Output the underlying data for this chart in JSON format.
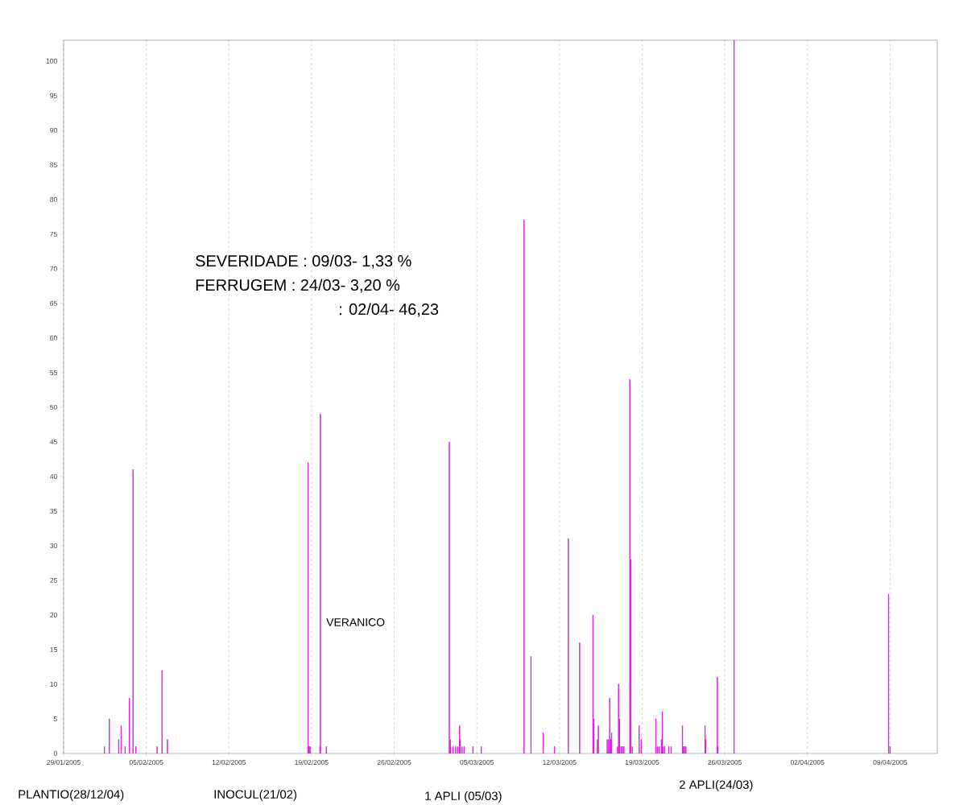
{
  "chart_data": {
    "type": "bar",
    "color": "#e000e0",
    "x": [
      "2005-02-01T11:00",
      "2005-02-01T21:00",
      "2005-02-02T16:00",
      "2005-02-02T21:00",
      "2005-02-03T05:00",
      "2005-02-03T14:00",
      "2005-02-03T21:00",
      "2005-02-04T03:00",
      "2005-02-05T22:00",
      "2005-02-06T08:00",
      "2005-02-06T19:00",
      "2005-02-18T17:00",
      "2005-02-18T19:00",
      "2005-02-18T21:00",
      "2005-02-19T17:00",
      "2005-02-19T18:00",
      "2005-02-20T06:00",
      "2005-03-02T16:00",
      "2005-03-02T18:00",
      "2005-03-02T19:00",
      "2005-03-03T00:00",
      "2005-03-03T05:00",
      "2005-03-03T09:00",
      "2005-03-03T13:00",
      "2005-03-03T14:00",
      "2005-03-03T18:00",
      "2005-03-03T22:00",
      "2005-03-04T16:00",
      "2005-03-05T09:00",
      "2005-03-09T00:00",
      "2005-03-09T14:00",
      "2005-03-10T15:00",
      "2005-03-11T14:00",
      "2005-03-12T18:00",
      "2005-03-13T17:00",
      "2005-03-14T20:00",
      "2005-03-14T22:00",
      "2005-03-15T05:00",
      "2005-03-15T07:00",
      "2005-03-16T01:00",
      "2005-03-16T04:00",
      "2005-03-16T06:00",
      "2005-03-16T08:00",
      "2005-03-16T10:00",
      "2005-03-16T22:00",
      "2005-03-17T00:00",
      "2005-03-17T02:00",
      "2005-03-17T05:00",
      "2005-03-17T08:00",
      "2005-03-17T11:00",
      "2005-03-17T23:00",
      "2005-03-18T01:00",
      "2005-03-18T04:00",
      "2005-03-18T18:00",
      "2005-03-18T22:00",
      "2005-03-20T04:00",
      "2005-03-20T07:00",
      "2005-03-20T11:00",
      "2005-03-20T15:00",
      "2005-03-20T17:00",
      "2005-03-20T19:00",
      "2005-03-20T22:00",
      "2005-03-21T06:00",
      "2005-03-21T11:00",
      "2005-03-22T10:00",
      "2005-03-22T12:00",
      "2005-03-22T14:00",
      "2005-03-22T17:00",
      "2005-03-24T08:00",
      "2005-03-24T09:00",
      "2005-03-25T09:00",
      "2005-03-25T10:00",
      "2005-03-26T19:00",
      "2005-04-08T21:00",
      "2005-04-09T00:00"
    ],
    "values": [
      1,
      5,
      2,
      4,
      1,
      8,
      41,
      1,
      1,
      12,
      2,
      42,
      1,
      1,
      1,
      49,
      1,
      45,
      2,
      1,
      1,
      1,
      1,
      4,
      2,
      1,
      1,
      1,
      1,
      77,
      14,
      3,
      1,
      31,
      16,
      20,
      5,
      2,
      4,
      2,
      2,
      8,
      2,
      3,
      1,
      10,
      5,
      1,
      1,
      1,
      54,
      28,
      1,
      4,
      2,
      5,
      1,
      1,
      2,
      6,
      1,
      1,
      1,
      1,
      4,
      1,
      1,
      1,
      4,
      2,
      11,
      1,
      103,
      23,
      1
    ],
    "xlim": [
      "2005-01-29",
      "2005-04-13"
    ],
    "xticks": [
      {
        "value": "2005-01-29",
        "label": "29/01/2005"
      },
      {
        "value": "2005-02-05",
        "label": "05/02/2005"
      },
      {
        "value": "2005-02-12",
        "label": "12/02/2005"
      },
      {
        "value": "2005-02-19",
        "label": "19/02/2005"
      },
      {
        "value": "2005-02-26",
        "label": "26/02/2005"
      },
      {
        "value": "2005-03-05",
        "label": "05/03/2005"
      },
      {
        "value": "2005-03-12",
        "label": "12/03/2005"
      },
      {
        "value": "2005-03-19",
        "label": "19/03/2005"
      },
      {
        "value": "2005-03-26",
        "label": "26/03/2005"
      },
      {
        "value": "2005-04-02",
        "label": "02/04/2005"
      },
      {
        "value": "2005-04-09",
        "label": "09/04/2005"
      }
    ],
    "ylim": [
      0,
      103
    ],
    "yticks": [
      0,
      5,
      10,
      15,
      20,
      25,
      30,
      35,
      40,
      45,
      50,
      55,
      60,
      65,
      70,
      75,
      80,
      85,
      90,
      95,
      100
    ],
    "grid": "x",
    "annotations": [
      "SEVERIDADE : 09/03- 1,33 %",
      "FERRUGEM : 24/03- 3,20 %",
      ": 02/04- 46,23",
      "VERANICO",
      "PLANTIO(28/12/04)",
      "INOCUL(21/02)",
      "1 APLI (05/03)",
      "2 APLI(24/03)"
    ]
  }
}
